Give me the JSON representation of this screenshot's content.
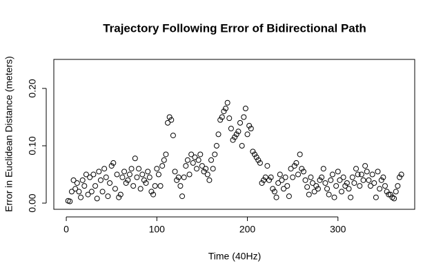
{
  "chart_data": {
    "type": "scatter",
    "title": "Trajectory Following Error of Bidirectional Path",
    "x_label": "Time (40Hz)",
    "y_label": "Error in Euclidean Distance (meters)",
    "color": "#000000",
    "xlim": [
      -13.76,
      384.76
    ],
    "ylim": [
      -0.0108,
      0.2506
    ],
    "xticks": [
      0,
      100,
      200,
      300
    ],
    "yticks": [
      {
        "value": 0,
        "label": "0.00"
      },
      {
        "value": 0.1,
        "label": "0.10"
      },
      {
        "value": 0.2,
        "label": "0.20"
      }
    ],
    "x": [
      2,
      4,
      6,
      8,
      10,
      12,
      14,
      16,
      18,
      20,
      22,
      24,
      26,
      28,
      30,
      32,
      34,
      36,
      38,
      40,
      42,
      44,
      46,
      48,
      50,
      52,
      54,
      56,
      58,
      60,
      62,
      64,
      66,
      68,
      70,
      72,
      74,
      76,
      78,
      80,
      82,
      84,
      86,
      88,
      90,
      92,
      94,
      96,
      98,
      100,
      102,
      104,
      106,
      108,
      110,
      112,
      114,
      116,
      118,
      120,
      122,
      124,
      126,
      128,
      130,
      132,
      134,
      136,
      138,
      140,
      142,
      144,
      146,
      148,
      150,
      152,
      154,
      156,
      158,
      160,
      162,
      164,
      166,
      168,
      170,
      172,
      174,
      176,
      178,
      180,
      182,
      184,
      186,
      188,
      190,
      192,
      194,
      196,
      198,
      200,
      202,
      204,
      206,
      208,
      210,
      212,
      214,
      216,
      218,
      220,
      222,
      224,
      226,
      228,
      230,
      232,
      234,
      236,
      238,
      240,
      242,
      244,
      246,
      248,
      250,
      252,
      254,
      256,
      258,
      260,
      262,
      264,
      266,
      268,
      270,
      272,
      274,
      276,
      278,
      280,
      282,
      284,
      286,
      288,
      290,
      292,
      294,
      296,
      298,
      300,
      302,
      304,
      306,
      308,
      310,
      312,
      314,
      316,
      318,
      320,
      322,
      324,
      326,
      328,
      330,
      332,
      334,
      336,
      338,
      340,
      342,
      344,
      346,
      348,
      350,
      352,
      354,
      356,
      358,
      360,
      362,
      364,
      366,
      368,
      370
    ],
    "values": [
      0.004,
      0.003,
      0.02,
      0.04,
      0.025,
      0.035,
      0.02,
      0.01,
      0.04,
      0.03,
      0.05,
      0.015,
      0.045,
      0.02,
      0.05,
      0.03,
      0.008,
      0.055,
      0.04,
      0.02,
      0.06,
      0.045,
      0.012,
      0.035,
      0.065,
      0.07,
      0.025,
      0.05,
      0.01,
      0.015,
      0.045,
      0.055,
      0.035,
      0.04,
      0.05,
      0.06,
      0.03,
      0.078,
      0.045,
      0.06,
      0.025,
      0.05,
      0.04,
      0.035,
      0.055,
      0.045,
      0.02,
      0.015,
      0.03,
      0.06,
      0.05,
      0.03,
      0.065,
      0.075,
      0.085,
      0.14,
      0.15,
      0.145,
      0.118,
      0.055,
      0.04,
      0.045,
      0.03,
      0.012,
      0.045,
      0.065,
      0.075,
      0.05,
      0.085,
      0.07,
      0.08,
      0.06,
      0.075,
      0.085,
      0.065,
      0.055,
      0.06,
      0.05,
      0.04,
      0.075,
      0.06,
      0.085,
      0.1,
      0.12,
      0.145,
      0.15,
      0.16,
      0.165,
      0.175,
      0.148,
      0.13,
      0.11,
      0.115,
      0.12,
      0.125,
      0.14,
      0.1,
      0.15,
      0.165,
      0.12,
      0.135,
      0.13,
      0.09,
      0.085,
      0.08,
      0.075,
      0.07,
      0.035,
      0.04,
      0.045,
      0.065,
      0.04,
      0.045,
      0.025,
      0.02,
      0.01,
      0.035,
      0.05,
      0.04,
      0.025,
      0.045,
      0.03,
      0.012,
      0.06,
      0.045,
      0.065,
      0.07,
      0.05,
      0.085,
      0.06,
      0.055,
      0.04,
      0.028,
      0.015,
      0.045,
      0.035,
      0.02,
      0.03,
      0.025,
      0.04,
      0.045,
      0.06,
      0.035,
      0.025,
      0.015,
      0.04,
      0.05,
      0.01,
      0.03,
      0.055,
      0.04,
      0.02,
      0.045,
      0.03,
      0.035,
      0.025,
      0.01,
      0.045,
      0.035,
      0.06,
      0.05,
      0.03,
      0.05,
      0.04,
      0.065,
      0.055,
      0.04,
      0.03,
      0.05,
      0.035,
      0.01,
      0.055,
      0.025,
      0.04,
      0.045,
      0.03,
      0.02,
      0.015,
      0.015,
      0.01,
      0.008,
      0.02,
      0.03,
      0.045,
      0.05
    ]
  }
}
